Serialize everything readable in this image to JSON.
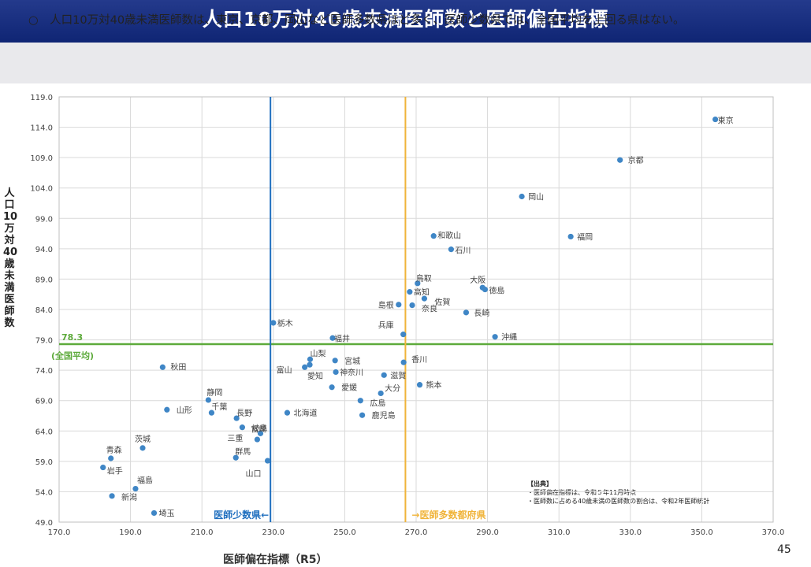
{
  "title": "人口10万対40歳未満医師数と医師偏在指標",
  "subtitle": "○　人口10万対40歳未満医師数は、東京、京都、岡山など医師多数県ほど多く、医師少数県では、全国平均を上回る県はない。",
  "page_number": "45",
  "source": {
    "heading": "【出典】",
    "lines": [
      "・医師偏在指標は、令和５年11月時点",
      "・医師数に占める40歳未満の医師数の割合は、令和2年医師統計"
    ]
  },
  "colors": {
    "point": "#3f86c6",
    "avg_line": "#5daa3b",
    "low_line": "#1f6fbf",
    "high_line": "#f0b43a",
    "header": "#1a2f80"
  },
  "chart_data": {
    "type": "scatter",
    "xlabel": "医師偏在指標（R5）",
    "ylabel": "人口10万対40歳未満医師数",
    "xlim": [
      170,
      370
    ],
    "ylim": [
      49,
      119
    ],
    "xticks": [
      "170.0",
      "190.0",
      "210.0",
      "230.0",
      "250.0",
      "270.0",
      "290.0",
      "310.0",
      "330.0",
      "350.0",
      "370.0"
    ],
    "yticks": [
      "49.0",
      "54.0",
      "59.0",
      "64.0",
      "69.0",
      "74.0",
      "79.0",
      "84.0",
      "89.0",
      "94.0",
      "99.0",
      "104.0",
      "109.0",
      "114.0",
      "119.0"
    ],
    "grid": true,
    "average": {
      "value": 78.3,
      "label": "78.3",
      "note": "(全国平均)"
    },
    "low_threshold": {
      "x": 229.2,
      "label": "医師少数県←"
    },
    "high_threshold": {
      "x": 267.0,
      "label": "→医師多数都府県"
    },
    "points": [
      {
        "name": "東京",
        "x": 353.8,
        "y": 115.3
      },
      {
        "name": "京都",
        "x": 327.1,
        "y": 108.6
      },
      {
        "name": "岡山",
        "x": 299.6,
        "y": 102.6
      },
      {
        "name": "福岡",
        "x": 313.3,
        "y": 96.0
      },
      {
        "name": "和歌山",
        "x": 274.9,
        "y": 96.1
      },
      {
        "name": "石川",
        "x": 279.8,
        "y": 93.9
      },
      {
        "name": "鳥取",
        "x": 270.4,
        "y": 88.3
      },
      {
        "name": "大阪",
        "x": 288.6,
        "y": 87.6
      },
      {
        "name": "徳島",
        "x": 289.3,
        "y": 87.3
      },
      {
        "name": "高知",
        "x": 268.2,
        "y": 86.9
      },
      {
        "name": "佐賀",
        "x": 272.3,
        "y": 85.8
      },
      {
        "name": "島根",
        "x": 265.1,
        "y": 84.8
      },
      {
        "name": "奈良",
        "x": 268.9,
        "y": 84.7
      },
      {
        "name": "長崎",
        "x": 284.0,
        "y": 83.5
      },
      {
        "name": "栃木",
        "x": 230.0,
        "y": 81.8
      },
      {
        "name": "兵庫",
        "x": 266.4,
        "y": 79.9
      },
      {
        "name": "沖縄",
        "x": 292.1,
        "y": 79.5
      },
      {
        "name": "福井",
        "x": 246.6,
        "y": 79.3
      },
      {
        "name": "山梨",
        "x": 240.3,
        "y": 75.8
      },
      {
        "name": "宮城",
        "x": 247.3,
        "y": 75.6
      },
      {
        "name": "香川",
        "x": 266.5,
        "y": 75.3
      },
      {
        "name": "富山",
        "x": 238.8,
        "y": 74.5
      },
      {
        "name": "愛知",
        "x": 240.2,
        "y": 74.9
      },
      {
        "name": "秋田",
        "x": 199.0,
        "y": 74.5
      },
      {
        "name": "神奈川",
        "x": 247.5,
        "y": 73.7
      },
      {
        "name": "滋賀",
        "x": 261.0,
        "y": 73.2
      },
      {
        "name": "熊本",
        "x": 271.0,
        "y": 71.6
      },
      {
        "name": "愛媛",
        "x": 246.4,
        "y": 71.2
      },
      {
        "name": "大分",
        "x": 260.1,
        "y": 70.2
      },
      {
        "name": "静岡",
        "x": 211.8,
        "y": 69.1
      },
      {
        "name": "広島",
        "x": 254.4,
        "y": 69.0
      },
      {
        "name": "山形",
        "x": 200.2,
        "y": 67.5
      },
      {
        "name": "千葉",
        "x": 212.7,
        "y": 67.0
      },
      {
        "name": "北海道",
        "x": 233.9,
        "y": 67.0
      },
      {
        "name": "鹿児島",
        "x": 254.9,
        "y": 66.6
      },
      {
        "name": "長野",
        "x": 219.7,
        "y": 66.1
      },
      {
        "name": "岐阜",
        "x": 221.3,
        "y": 64.6
      },
      {
        "name": "宮崎",
        "x": 226.4,
        "y": 63.6
      },
      {
        "name": "三重",
        "x": 225.5,
        "y": 62.6
      },
      {
        "name": "茨城",
        "x": 193.4,
        "y": 61.2
      },
      {
        "name": "青森",
        "x": 184.5,
        "y": 59.5
      },
      {
        "name": "群馬",
        "x": 219.5,
        "y": 59.6
      },
      {
        "name": "山口",
        "x": 228.4,
        "y": 59.1
      },
      {
        "name": "岩手",
        "x": 182.3,
        "y": 58.0
      },
      {
        "name": "福島",
        "x": 191.4,
        "y": 54.5
      },
      {
        "name": "新潟",
        "x": 184.8,
        "y": 53.3
      },
      {
        "name": "埼玉",
        "x": 196.6,
        "y": 50.5
      }
    ]
  }
}
